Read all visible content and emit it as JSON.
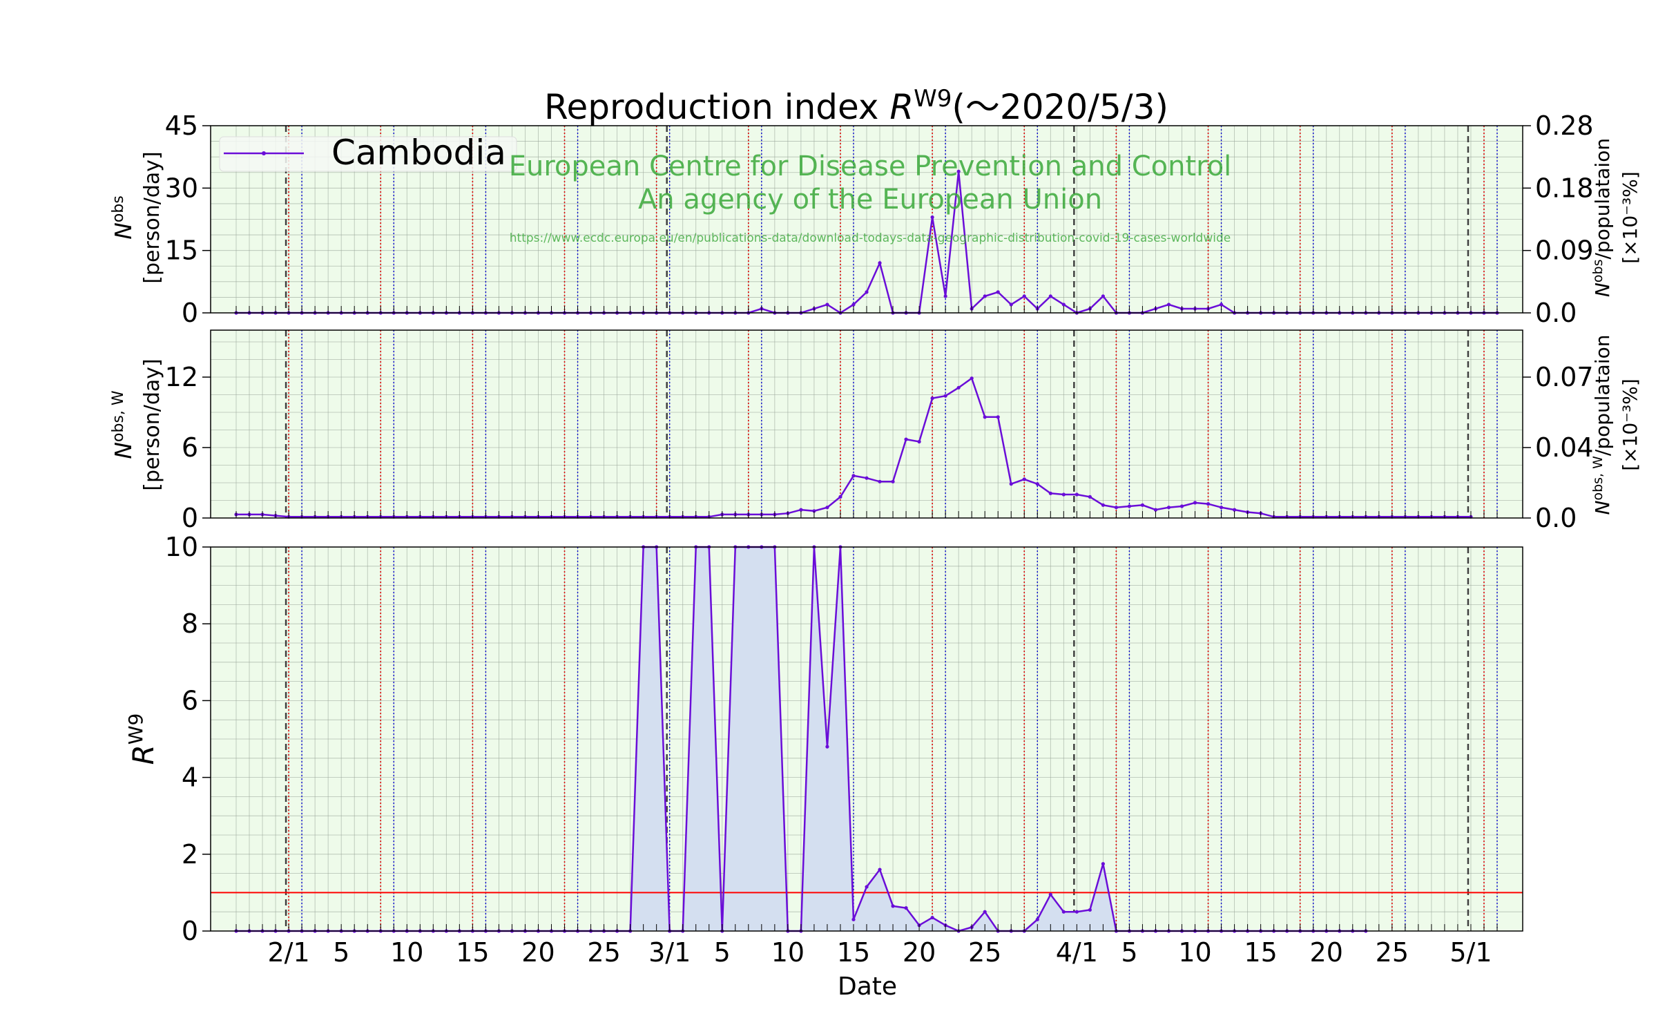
{
  "figure": {
    "title_prefix": "Reproduction index ",
    "title_symbol": "R",
    "title_superscript": "W9",
    "title_suffix": "(～2020/5/3)",
    "legend_label": "Cambodia",
    "watermark_line1": "European Centre for Disease Prevention and Control",
    "watermark_line2": "An agency of the European Union",
    "watermark_url": "https://www.ecdc.europa.eu/en/publications-data/download-todays-data-geographic-distribution-covid-19-cases-worldwide",
    "xlabel": "Date",
    "x_tick_labels": [
      "2/1",
      "5",
      "10",
      "15",
      "20",
      "25",
      "3/1",
      "5",
      "10",
      "15",
      "20",
      "25",
      "4/1",
      "5",
      "10",
      "15",
      "20",
      "25",
      "5/1"
    ],
    "panel1_ylabel": {
      "symbol": "N",
      "sup": "obs",
      "unit": "[person/day]"
    },
    "panel1_y2label": {
      "symbol": "N",
      "sup": "obs",
      "rest": "/populataion",
      "unit": "[×10⁻³%]"
    },
    "panel2_ylabel": {
      "symbol": "N",
      "sup": "obs, W",
      "unit": "[person/day]"
    },
    "panel2_y2label": {
      "symbol": "N",
      "sup": "obs, W",
      "rest": "/populataion",
      "unit": "[×10⁻³%]"
    },
    "panel3_ylabel": {
      "symbol": "R",
      "sup": "W9"
    }
  },
  "colors": {
    "series": "#6a0dd8",
    "fill": "#d4dff0",
    "threshold": "#ff0000",
    "background": "#eefbea",
    "grid": "#9aa69a",
    "sunday_line": "#0000cc",
    "saturday_line": "#dd0000",
    "month_line": "#404040",
    "watermark": "#3aa83a"
  },
  "chart_data": [
    {
      "type": "line",
      "panel": "daily new cases",
      "x_start": "2020-01-28",
      "x_end": "2020-05-03",
      "x": [
        "2020-01-28",
        "2020-01-29",
        "2020-01-30",
        "2020-01-31",
        "2020-02-01",
        "2020-02-02",
        "2020-02-03",
        "2020-02-04",
        "2020-02-05",
        "2020-02-06",
        "2020-02-07",
        "2020-02-08",
        "2020-02-09",
        "2020-02-10",
        "2020-02-11",
        "2020-02-12",
        "2020-02-13",
        "2020-02-14",
        "2020-02-15",
        "2020-02-16",
        "2020-02-17",
        "2020-02-18",
        "2020-02-19",
        "2020-02-20",
        "2020-02-21",
        "2020-02-22",
        "2020-02-23",
        "2020-02-24",
        "2020-02-25",
        "2020-02-26",
        "2020-02-27",
        "2020-02-28",
        "2020-02-29",
        "2020-03-01",
        "2020-03-02",
        "2020-03-03",
        "2020-03-04",
        "2020-03-05",
        "2020-03-06",
        "2020-03-07",
        "2020-03-08",
        "2020-03-09",
        "2020-03-10",
        "2020-03-11",
        "2020-03-12",
        "2020-03-13",
        "2020-03-14",
        "2020-03-15",
        "2020-03-16",
        "2020-03-17",
        "2020-03-18",
        "2020-03-19",
        "2020-03-20",
        "2020-03-21",
        "2020-03-22",
        "2020-03-23",
        "2020-03-24",
        "2020-03-25",
        "2020-03-26",
        "2020-03-27",
        "2020-03-28",
        "2020-03-29",
        "2020-03-30",
        "2020-03-31",
        "2020-04-01",
        "2020-04-02",
        "2020-04-03",
        "2020-04-04",
        "2020-04-05",
        "2020-04-06",
        "2020-04-07",
        "2020-04-08",
        "2020-04-09",
        "2020-04-10",
        "2020-04-11",
        "2020-04-12",
        "2020-04-13",
        "2020-04-14",
        "2020-04-15",
        "2020-04-16",
        "2020-04-17",
        "2020-04-18",
        "2020-04-19",
        "2020-04-20",
        "2020-04-21",
        "2020-04-22",
        "2020-04-23",
        "2020-04-24",
        "2020-04-25",
        "2020-04-26",
        "2020-04-27",
        "2020-04-28",
        "2020-04-29",
        "2020-04-30",
        "2020-05-01",
        "2020-05-02",
        "2020-05-03"
      ],
      "values": [
        0,
        0,
        0,
        0,
        0,
        0,
        0,
        0,
        0,
        0,
        0,
        0,
        0,
        0,
        0,
        0,
        0,
        0,
        0,
        0,
        0,
        0,
        0,
        0,
        0,
        0,
        0,
        0,
        0,
        0,
        0,
        0,
        0,
        0,
        0,
        0,
        0,
        0,
        0,
        0,
        1,
        0,
        0,
        0,
        1,
        2,
        0,
        2,
        5,
        12,
        0,
        0,
        0,
        23,
        4,
        34,
        1,
        4,
        5,
        2,
        4,
        1,
        4,
        2,
        0,
        1,
        4,
        0,
        0,
        0,
        1,
        2,
        1,
        1,
        1,
        2,
        0,
        0,
        0,
        0,
        0,
        0,
        0,
        0,
        0,
        0,
        0,
        0,
        0,
        0,
        0,
        0,
        0,
        0,
        0,
        0,
        0
      ],
      "ylim": [
        0,
        45
      ],
      "y_ticks": [
        0,
        15,
        30,
        45
      ],
      "y2_ticks": [
        "0.0",
        "0.09",
        "0.18",
        "0.28"
      ],
      "series_name": "Cambodia"
    },
    {
      "type": "line",
      "panel": "weekly averaged cases",
      "x_start": "2020-01-28",
      "values": [
        0.3,
        0.3,
        0.3,
        0.2,
        0.1,
        0.1,
        0.1,
        0.1,
        0.1,
        0.1,
        0.1,
        0.1,
        0.1,
        0.1,
        0.1,
        0.1,
        0.1,
        0.1,
        0.1,
        0.1,
        0.1,
        0.1,
        0.1,
        0.1,
        0.1,
        0.1,
        0.1,
        0.1,
        0.1,
        0.1,
        0.1,
        0.1,
        0.1,
        0.1,
        0.1,
        0.1,
        0.1,
        0.3,
        0.3,
        0.3,
        0.3,
        0.3,
        0.4,
        0.7,
        0.6,
        0.9,
        1.8,
        3.6,
        3.4,
        3.1,
        3.1,
        6.7,
        6.5,
        10.2,
        10.4,
        11.1,
        11.9,
        8.6,
        8.6,
        2.9,
        3.3,
        2.9,
        2.1,
        2.0,
        2.0,
        1.8,
        1.1,
        0.9,
        1.0,
        1.1,
        0.7,
        0.9,
        1.0,
        1.3,
        1.2,
        0.9,
        0.7,
        0.5,
        0.4,
        0.1,
        0.1,
        0.1,
        0.1,
        0.1,
        0.1,
        0.1,
        0.1,
        0.1,
        0.1,
        0.1,
        0.1,
        0.1,
        0.1,
        0.1,
        0.1
      ],
      "ylim": [
        0,
        16
      ],
      "y_ticks": [
        0,
        6,
        12
      ],
      "y2_ticks": [
        "0.0",
        "0.04",
        "0.07"
      ]
    },
    {
      "type": "area",
      "panel": "reproduction index",
      "x_start": "2020-01-28",
      "values": [
        0,
        0,
        0,
        0,
        0,
        0,
        0,
        0,
        0,
        0,
        0,
        0,
        0,
        0,
        0,
        0,
        0,
        0,
        0,
        0,
        0,
        0,
        0,
        0,
        0,
        0,
        0,
        0,
        0,
        0,
        0,
        10,
        10,
        0,
        0,
        10,
        10,
        0,
        10,
        10,
        10,
        10,
        0,
        0,
        10,
        4.8,
        10,
        0.3,
        1.15,
        1.6,
        0.65,
        0.6,
        0.15,
        0.35,
        0.15,
        0,
        0.1,
        0.5,
        0,
        0,
        0,
        0.3,
        0.95,
        0.5,
        0.5,
        0.55,
        1.75,
        0,
        0,
        0,
        0,
        0,
        0,
        0,
        0,
        0,
        0,
        0,
        0,
        0,
        0,
        0,
        0,
        0,
        0,
        0,
        0
      ],
      "values_note": "10 = exceeds upper limit of axis",
      "threshold": 1,
      "ylim": [
        0,
        10
      ],
      "y_ticks": [
        0,
        2,
        4,
        6,
        8,
        10
      ]
    }
  ]
}
